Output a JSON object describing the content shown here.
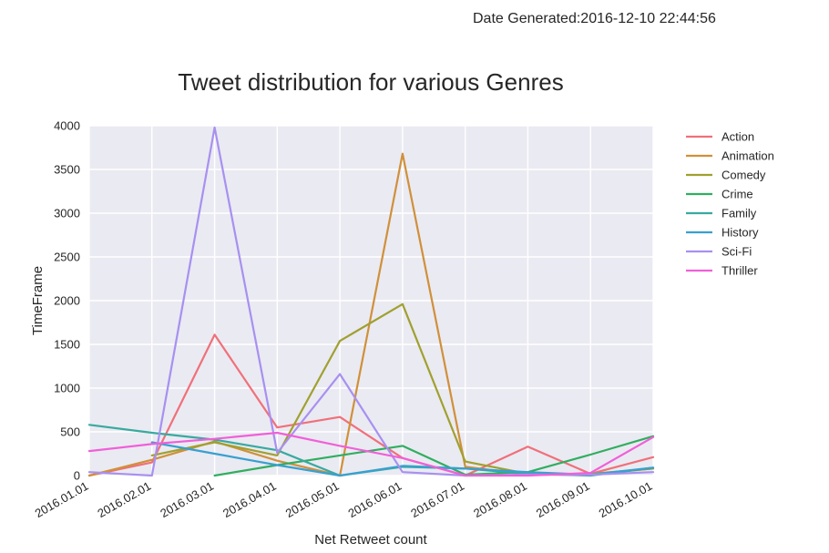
{
  "header": {
    "stamp_label": "Date Generated:",
    "stamp_value": "2016-12-10 22:44:56"
  },
  "colors": {
    "plot_bg": "#EAEAF2",
    "grid": "#FFFFFF"
  },
  "chart_data": {
    "type": "line",
    "title": "Tweet distribution for various Genres",
    "xlabel": "Net Retweet count",
    "ylabel": "TimeFrame",
    "ylim": [
      0,
      4000
    ],
    "yticks": [
      0,
      500,
      1000,
      1500,
      2000,
      2500,
      3000,
      3500,
      4000
    ],
    "categories": [
      "2016.01.01",
      "2016.02.01",
      "2016.03.01",
      "2016.04.01",
      "2016.05.01",
      "2016.06.01",
      "2016.07.01",
      "2016.08.01",
      "2016.09.01",
      "2016.10.01"
    ],
    "grid": true,
    "legend_position": "outside-right",
    "series": [
      {
        "name": "Action",
        "color": "#F0707A",
        "values": [
          0,
          150,
          1610,
          550,
          670,
          200,
          0,
          330,
          20,
          210
        ]
      },
      {
        "name": "Animation",
        "color": "#D0903A",
        "values": [
          0,
          180,
          390,
          170,
          0,
          3680,
          100,
          10,
          10,
          80
        ]
      },
      {
        "name": "Comedy",
        "color": "#A0A030",
        "values": [
          null,
          230,
          380,
          230,
          1540,
          1960,
          160,
          20,
          20,
          80
        ]
      },
      {
        "name": "Crime",
        "color": "#30AE60",
        "values": [
          null,
          null,
          0,
          120,
          230,
          340,
          10,
          40,
          240,
          450
        ]
      },
      {
        "name": "Family",
        "color": "#38AAA0",
        "values": [
          580,
          490,
          410,
          290,
          0,
          100,
          80,
          20,
          0,
          90
        ]
      },
      {
        "name": "History",
        "color": "#38A0D0",
        "values": [
          null,
          380,
          250,
          120,
          0,
          110,
          80,
          40,
          10,
          90
        ]
      },
      {
        "name": "Sci-Fi",
        "color": "#A890F0",
        "values": [
          40,
          0,
          3980,
          260,
          1160,
          40,
          0,
          10,
          10,
          40
        ]
      },
      {
        "name": "Thriller",
        "color": "#F060D8",
        "values": [
          280,
          360,
          420,
          490,
          340,
          200,
          0,
          0,
          30,
          440
        ]
      }
    ]
  }
}
